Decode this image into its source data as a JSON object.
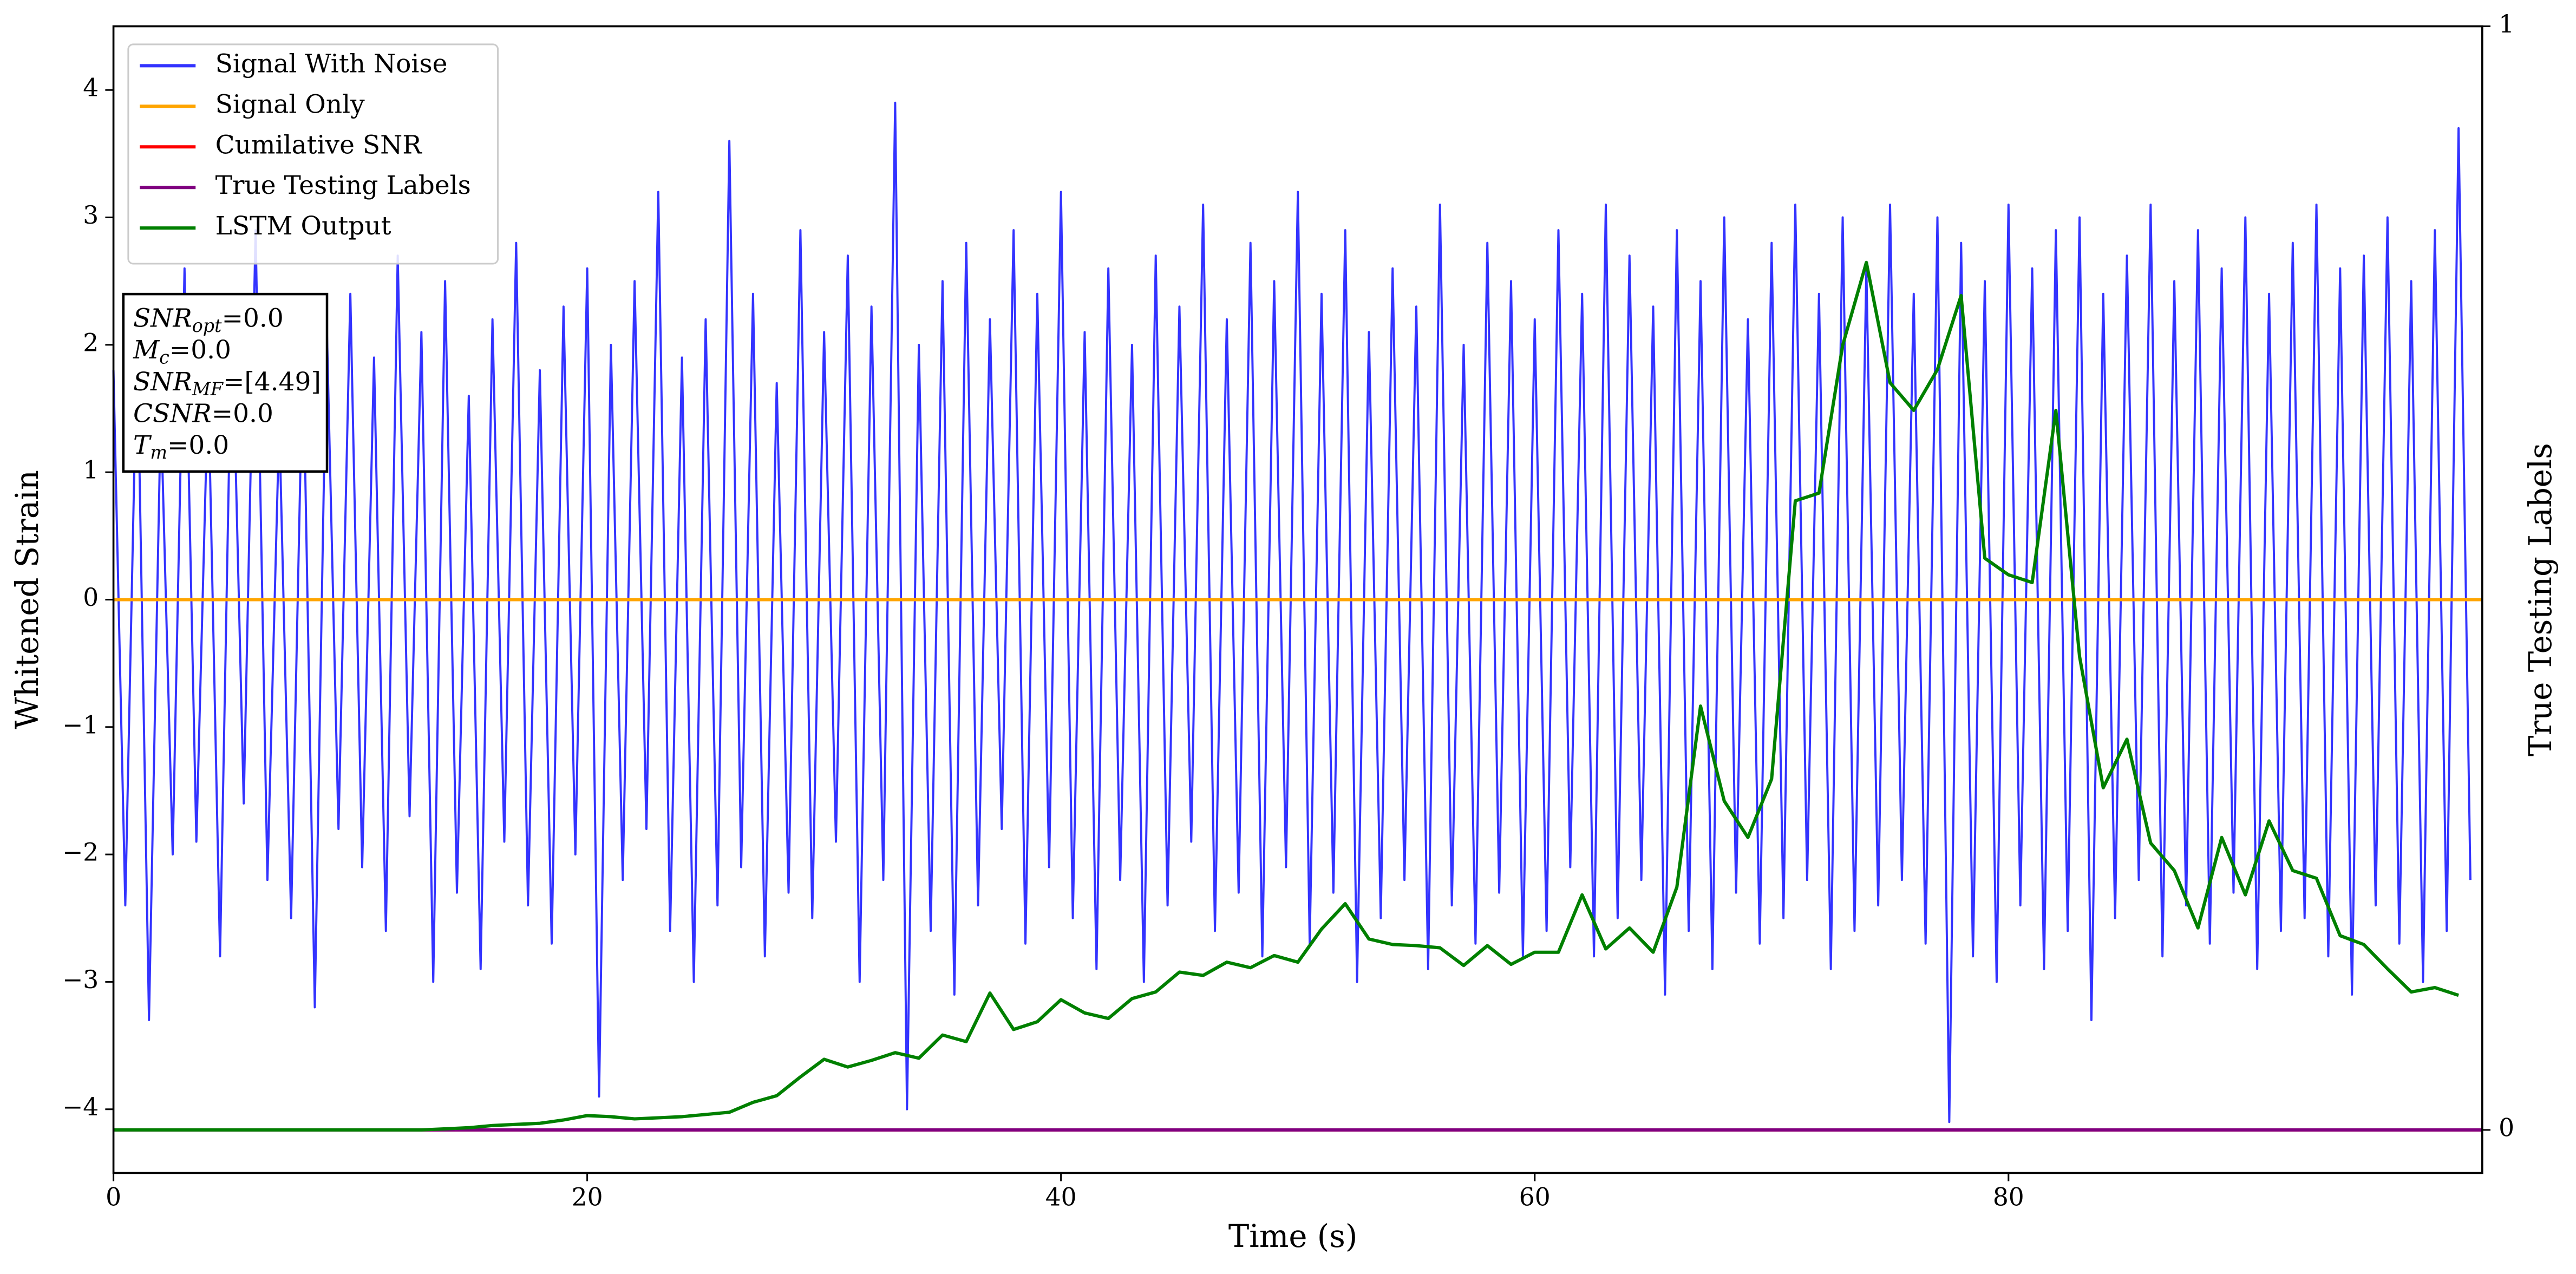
{
  "chart_data": {
    "type": "line",
    "x_label": "Time (s)",
    "y_label": "Whitened Strain",
    "y2_label": "True Testing Labels",
    "xlim": [
      0,
      100
    ],
    "xticks": [
      0,
      20,
      40,
      60,
      80
    ],
    "ylim": [
      -4.5,
      4.5
    ],
    "yticks": [
      {
        "value": -4,
        "label": "−4"
      },
      {
        "value": -3,
        "label": "−3"
      },
      {
        "value": -2,
        "label": "−2"
      },
      {
        "value": -1,
        "label": "−1"
      },
      0,
      1,
      2,
      3,
      4
    ],
    "y2lim": [
      -0.039,
      1
    ],
    "y2ticks": [
      0,
      1
    ],
    "grid": false,
    "legend": "upper left",
    "annotation": [
      [
        "SNR",
        "opt",
        "=0.0"
      ],
      [
        "M",
        "c",
        "=0.0"
      ],
      [
        "SNR",
        "MF",
        "=[4.49]"
      ],
      [
        "CSNR",
        "=0.0"
      ],
      [
        "T",
        "m",
        "=0.0"
      ]
    ],
    "series": [
      {
        "name": "Signal With Noise",
        "color": "#3333ff",
        "x": [
          0,
          0.5,
          1,
          1.5,
          2,
          2.5,
          3,
          3.5,
          4,
          4.5,
          5,
          5.5,
          6,
          6.5,
          7,
          7.5,
          8,
          8.5,
          9,
          9.5,
          10,
          10.5,
          11,
          11.5,
          12,
          12.5,
          13,
          13.5,
          14,
          14.5,
          15,
          15.5,
          16,
          16.5,
          17,
          17.5,
          18,
          18.5,
          19,
          19.5,
          20,
          20.5,
          21,
          21.5,
          22,
          22.5,
          23,
          23.5,
          24,
          24.5,
          25,
          25.5,
          26,
          26.5,
          27,
          27.5,
          28,
          28.5,
          29,
          29.5,
          30,
          30.5,
          31,
          31.5,
          32,
          32.5,
          33,
          33.5,
          34,
          34.5,
          35,
          35.5,
          36,
          36.5,
          37,
          37.5,
          38,
          38.5,
          39,
          39.5,
          40,
          40.5,
          41,
          41.5,
          42,
          42.5,
          43,
          43.5,
          44,
          44.5,
          45,
          45.5,
          46,
          46.5,
          47,
          47.5,
          48,
          48.5,
          49,
          49.5,
          50,
          50.5,
          51,
          51.5,
          52,
          52.5,
          53,
          53.5,
          54,
          54.5,
          55,
          55.5,
          56,
          56.5,
          57,
          57.5,
          58,
          58.5,
          59,
          59.5,
          60,
          60.5,
          61,
          61.5,
          62,
          62.5,
          63,
          63.5,
          64,
          64.5,
          65,
          65.5,
          66,
          66.5,
          67,
          67.5,
          68,
          68.5,
          69,
          69.5,
          70,
          70.5,
          71,
          71.5,
          72,
          72.5,
          73,
          73.5,
          74,
          74.5,
          75,
          75.5,
          76,
          76.5,
          77,
          77.5,
          78,
          78.5,
          79,
          79.5,
          80,
          80.5,
          81,
          81.5,
          82,
          82.5,
          83,
          83.5,
          84,
          84.5,
          85,
          85.5,
          86,
          86.5,
          87,
          87.5,
          88,
          88.5,
          89,
          89.5,
          90,
          90.5,
          91,
          91.5,
          92,
          92.5,
          93,
          93.5,
          94,
          94.5,
          95,
          95.5,
          96,
          96.5,
          97,
          97.5,
          98,
          98.5,
          99,
          99.5
        ],
        "values": [
          1.8,
          -2.4,
          2.1,
          -3.3,
          1.5,
          -2.0,
          2.6,
          -1.9,
          1.7,
          -2.8,
          2.3,
          -1.6,
          2.9,
          -2.2,
          1.4,
          -2.5,
          2.0,
          -3.2,
          2.2,
          -1.8,
          2.4,
          -2.1,
          1.9,
          -2.6,
          2.7,
          -1.7,
          2.1,
          -3.0,
          2.5,
          -2.3,
          1.6,
          -2.9,
          2.2,
          -1.9,
          2.8,
          -2.4,
          1.8,
          -2.7,
          2.3,
          -2.0,
          2.6,
          -3.9,
          2.0,
          -2.2,
          2.5,
          -1.8,
          3.2,
          -2.6,
          1.9,
          -3.0,
          2.2,
          -2.4,
          3.6,
          -2.1,
          2.4,
          -2.8,
          1.7,
          -2.3,
          2.9,
          -2.5,
          2.1,
          -1.9,
          2.7,
          -3.0,
          2.3,
          -2.2,
          3.9,
          -4.0,
          2.0,
          -2.6,
          2.5,
          -3.1,
          2.8,
          -2.4,
          2.2,
          -1.8,
          2.9,
          -2.7,
          2.4,
          -2.1,
          3.2,
          -2.5,
          2.1,
          -2.9,
          2.6,
          -2.2,
          2.0,
          -3.0,
          2.7,
          -2.4,
          2.3,
          -1.9,
          3.1,
          -2.6,
          2.2,
          -2.3,
          2.8,
          -2.8,
          2.5,
          -2.1,
          3.2,
          -2.7,
          2.4,
          -2.3,
          2.9,
          -3.0,
          2.1,
          -2.5,
          2.6,
          -2.2,
          2.3,
          -2.9,
          3.1,
          -2.4,
          2.0,
          -2.7,
          2.8,
          -2.3,
          2.5,
          -2.8,
          2.2,
          -2.6,
          2.9,
          -2.1,
          2.4,
          -2.8,
          3.1,
          -2.5,
          2.7,
          -2.2,
          2.3,
          -3.1,
          2.9,
          -2.6,
          2.5,
          -2.9,
          3.0,
          -2.3,
          2.2,
          -2.7,
          2.8,
          -2.5,
          3.1,
          -2.2,
          2.4,
          -2.9,
          3.0,
          -2.6,
          2.6,
          -2.4,
          3.1,
          -2.2,
          2.4,
          -2.7,
          3.0,
          -4.1,
          2.8,
          -2.8,
          2.5,
          -3.0,
          3.1,
          -2.4,
          2.6,
          -2.9,
          2.9,
          -2.6,
          3.0,
          -3.3,
          2.4,
          -2.5,
          2.7,
          -2.2,
          3.1,
          -2.8,
          2.5,
          -2.4,
          2.9,
          -2.7,
          2.6,
          -2.3,
          3.0,
          -2.9,
          2.4,
          -2.6,
          2.8,
          -2.5,
          3.1,
          -2.8,
          2.6,
          -3.1,
          2.7,
          -2.4,
          3.0,
          -2.7,
          2.5,
          -3.0,
          2.9,
          -2.6,
          3.7,
          -2.2
        ]
      },
      {
        "name": "Signal Only",
        "color": "#ffa500",
        "x": [
          0,
          100
        ],
        "values": [
          0,
          0
        ]
      },
      {
        "name": "Cumilative SNR",
        "color": "#ff0000",
        "axis": "y2",
        "x": [
          0,
          100
        ],
        "values": [
          0,
          0
        ]
      },
      {
        "name": "True Testing Labels",
        "color": "#800080",
        "axis": "y2",
        "x": [
          0,
          100
        ],
        "values": [
          0,
          0
        ]
      },
      {
        "name": "LSTM Output",
        "color": "#008000",
        "axis": "y2",
        "x": [
          0,
          1,
          2,
          3,
          4,
          5,
          6,
          7,
          8,
          9,
          10,
          11,
          12,
          13,
          14,
          15,
          16,
          17,
          18,
          19,
          20,
          21,
          22,
          23,
          24,
          25,
          26,
          27,
          28,
          29,
          30,
          31,
          32,
          33,
          34,
          35,
          36,
          37,
          38,
          39,
          40,
          41,
          42,
          43,
          44,
          45,
          46,
          47,
          48,
          49,
          50,
          51,
          52,
          53,
          54,
          55,
          56,
          57,
          58,
          59,
          60,
          61,
          62,
          63,
          64,
          65,
          66,
          67,
          68,
          69,
          70,
          71,
          72,
          73,
          74,
          75,
          76,
          77,
          78,
          79,
          80,
          81,
          82,
          83,
          84,
          85,
          86,
          87,
          88,
          89,
          90,
          91,
          92,
          93,
          94,
          95,
          96,
          97,
          98,
          99
        ],
        "values": [
          0,
          0,
          0,
          0,
          0,
          0,
          0,
          0,
          0,
          0,
          0,
          0,
          0,
          0,
          0.001,
          0.002,
          0.004,
          0.005,
          0.006,
          0.009,
          0.013,
          0.012,
          0.01,
          0.011,
          0.012,
          0.014,
          0.016,
          0.025,
          0.031,
          0.048,
          0.064,
          0.057,
          0.063,
          0.07,
          0.065,
          0.086,
          0.08,
          0.124,
          0.091,
          0.098,
          0.118,
          0.106,
          0.101,
          0.119,
          0.125,
          0.143,
          0.14,
          0.152,
          0.147,
          0.158,
          0.152,
          0.182,
          0.205,
          0.173,
          0.168,
          0.167,
          0.165,
          0.149,
          0.167,
          0.15,
          0.161,
          0.161,
          0.213,
          0.164,
          0.183,
          0.161,
          0.22,
          0.384,
          0.298,
          0.265,
          0.318,
          0.57,
          0.577,
          0.711,
          0.786,
          0.677,
          0.652,
          0.689,
          0.756,
          0.518,
          0.503,
          0.496,
          0.652,
          0.429,
          0.31,
          0.354,
          0.26,
          0.235,
          0.183,
          0.265,
          0.213,
          0.28,
          0.235,
          0.228,
          0.176,
          0.168,
          0.146,
          0.125,
          0.129,
          0.122
        ]
      }
    ]
  }
}
